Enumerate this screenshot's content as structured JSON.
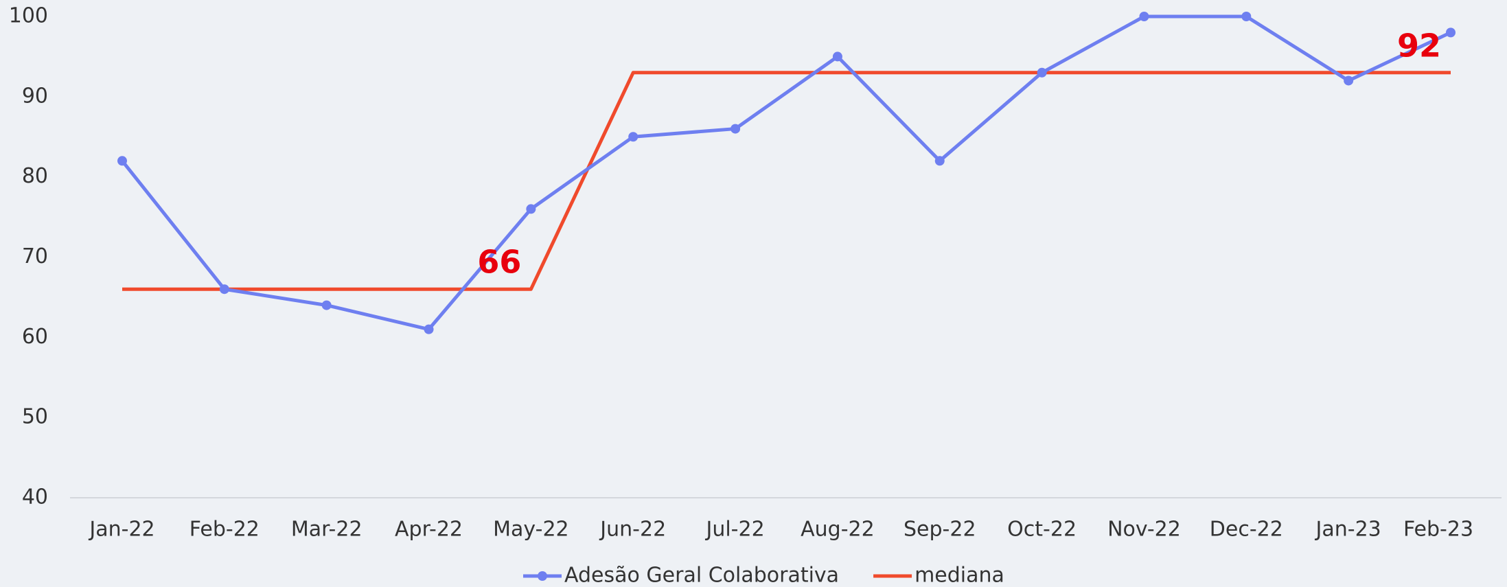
{
  "chart_data": {
    "type": "line",
    "categories": [
      "Jan-22",
      "Feb-22",
      "Mar-22",
      "Apr-22",
      "May-22",
      "Jun-22",
      "Jul-22",
      "Aug-22",
      "Sep-22",
      "Oct-22",
      "Nov-22",
      "Dec-22",
      "Jan-23",
      "Feb-23"
    ],
    "series": [
      {
        "name": "Adesão Geral Colaborativa",
        "color": "#6e7ff0",
        "markers": true,
        "values": [
          82,
          66,
          64,
          61,
          76,
          85,
          86,
          95,
          82,
          93,
          100,
          100,
          92,
          98
        ]
      },
      {
        "name": "mediana",
        "color": "#f04a2c",
        "markers": false,
        "values": [
          66,
          66,
          66,
          66,
          66,
          93,
          93,
          93,
          93,
          93,
          93,
          93,
          93,
          93
        ]
      }
    ],
    "annotations": [
      "66",
      "92"
    ],
    "annotation_color": "#e8000d",
    "ylim": [
      40,
      100
    ],
    "yticks": [
      40,
      50,
      60,
      70,
      80,
      90,
      100
    ],
    "grid": false,
    "legend": "bottom"
  }
}
